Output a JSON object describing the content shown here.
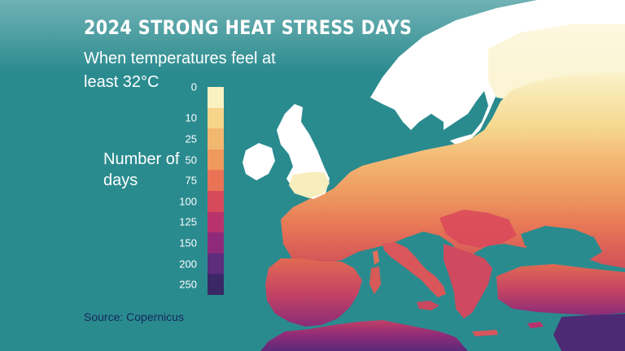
{
  "title": "2024 STRONG HEAT STRESS DAYS",
  "subtitle": "When temperatures feel at least 32°C",
  "legend": {
    "title": "Number of days",
    "ticks": [
      "0",
      "10",
      "25",
      "50",
      "75",
      "100",
      "125",
      "150",
      "200",
      "250"
    ],
    "colors": [
      "#faf1c0",
      "#f6d48a",
      "#f3b870",
      "#ef9a5c",
      "#ea7355",
      "#d64a5b",
      "#b8336c",
      "#8f2a7a",
      "#5d2c7a",
      "#3a2866"
    ]
  },
  "source": "Source: Copernicus",
  "map": {
    "sea_color": "#2a8b8f",
    "land_labels": [],
    "regions": [
      {
        "name": "scandinavia",
        "level": "cool"
      },
      {
        "name": "british-isles",
        "level": "cool"
      },
      {
        "name": "northern-europe",
        "level": "10-25"
      },
      {
        "name": "central-europe",
        "level": "25-50"
      },
      {
        "name": "iberia",
        "level": "75-200"
      },
      {
        "name": "italy",
        "level": "50-100"
      },
      {
        "name": "balkans",
        "level": "50-125"
      },
      {
        "name": "turkey",
        "level": "75-150"
      },
      {
        "name": "north-africa",
        "level": "150-250"
      },
      {
        "name": "middle-east",
        "level": "200-250"
      }
    ]
  }
}
